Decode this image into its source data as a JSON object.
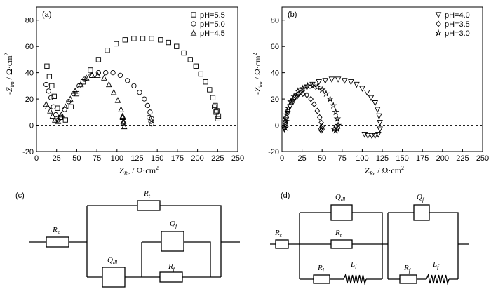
{
  "chart_data": [
    {
      "type": "scatter",
      "panel_label": "(a)",
      "xlabel": "Z_Re / Ω·cm²",
      "xlabel_main": "Z",
      "xlabel_sub": "Re",
      "xlabel_unit": " / Ω·cm",
      "xlabel_sup": "2",
      "ylabel": "-Z_im / Ω·cm²",
      "xlim": [
        0,
        250
      ],
      "ylim": [
        -20,
        90
      ],
      "xticks": [
        0,
        25,
        50,
        75,
        100,
        125,
        150,
        175,
        200,
        225,
        250
      ],
      "yticks": [
        -20,
        0,
        20,
        40,
        60,
        80
      ],
      "reference_line": 0,
      "legend_position": "top-right",
      "series": [
        {
          "name": "pH=5.5",
          "marker": "square",
          "x": [
            13,
            16,
            19,
            22,
            26,
            30,
            36,
            43,
            50,
            58,
            67,
            77,
            88,
            99,
            110,
            121,
            132,
            143,
            154,
            164,
            174,
            183,
            191,
            198,
            204,
            210,
            215,
            219,
            222,
            224,
            226,
            225,
            223,
            221
          ],
          "y": [
            45,
            37,
            30,
            22,
            13,
            6,
            4,
            14,
            24,
            33,
            42,
            50,
            57,
            62,
            65,
            66,
            66,
            66,
            65,
            63,
            60,
            55,
            50,
            45,
            39,
            33,
            27,
            21,
            15,
            11,
            7,
            5,
            10,
            14
          ]
        },
        {
          "name": "pH=5.0",
          "marker": "circle",
          "x": [
            12,
            15,
            18,
            21,
            24,
            27,
            30,
            35,
            40,
            46,
            53,
            60,
            68,
            77,
            86,
            95,
            104,
            113,
            121,
            128,
            134,
            138,
            141,
            143,
            143,
            142,
            140
          ],
          "y": [
            31,
            26,
            21,
            14,
            8,
            4,
            6,
            12,
            18,
            24,
            30,
            35,
            38,
            40,
            40,
            40,
            38,
            34,
            30,
            25,
            20,
            15,
            10,
            5,
            1,
            3,
            6
          ]
        },
        {
          "name": "pH=4.5",
          "marker": "triangle",
          "x": [
            12,
            14,
            17,
            20,
            23,
            27,
            31,
            36,
            42,
            48,
            55,
            62,
            69,
            76,
            84,
            90,
            96,
            101,
            105,
            107,
            108,
            109,
            108,
            107
          ],
          "y": [
            16,
            14,
            11,
            7,
            4,
            3,
            8,
            14,
            20,
            26,
            31,
            36,
            38,
            38,
            36,
            31,
            25,
            19,
            12,
            7,
            3,
            -1,
            2,
            6
          ]
        }
      ]
    },
    {
      "type": "scatter",
      "panel_label": "(b)",
      "xlabel": "Z_Re / Ω·cm²",
      "xlabel_main": "Z",
      "xlabel_sub": "Re",
      "xlabel_unit": " / Ω·cm",
      "xlabel_sup": "2",
      "ylabel": "-Z_im / Ω·cm²",
      "xlim": [
        0,
        250
      ],
      "ylim": [
        -20,
        90
      ],
      "xticks": [
        0,
        25,
        50,
        75,
        100,
        125,
        150,
        175,
        200,
        225,
        250
      ],
      "yticks": [
        -20,
        0,
        20,
        40,
        60,
        80
      ],
      "reference_line": 0,
      "legend_position": "top-right",
      "series": [
        {
          "name": "pH=4.0",
          "marker": "triangle-down",
          "x": [
            3,
            4,
            5,
            7,
            10,
            14,
            19,
            25,
            31,
            38,
            46,
            54,
            62,
            70,
            78,
            86,
            93,
            100,
            106,
            111,
            116,
            119,
            121,
            122,
            122,
            120,
            116,
            112,
            107,
            103
          ],
          "y": [
            -3,
            0,
            4,
            9,
            14,
            18,
            22,
            26,
            29,
            31,
            33,
            34,
            35,
            35,
            34,
            33,
            31,
            28,
            25,
            21,
            17,
            12,
            7,
            2,
            -3,
            -7,
            -8,
            -8,
            -8,
            -7
          ]
        },
        {
          "name": "pH=3.5",
          "marker": "diamond",
          "x": [
            3,
            4,
            5,
            7,
            10,
            13,
            17,
            21,
            26,
            31,
            36,
            40,
            44,
            47,
            49,
            50,
            50,
            49,
            48
          ],
          "y": [
            -2,
            2,
            6,
            11,
            15,
            19,
            22,
            24,
            24,
            23,
            20,
            16,
            11,
            6,
            2,
            -1,
            -3,
            -4,
            -3
          ]
        },
        {
          "name": "pH=3.0",
          "marker": "star",
          "x": [
            4,
            5,
            6,
            8,
            11,
            15,
            20,
            26,
            32,
            38,
            44,
            50,
            55,
            60,
            64,
            67,
            69,
            70,
            69,
            67,
            65
          ],
          "y": [
            -2,
            3,
            8,
            13,
            18,
            22,
            26,
            28,
            30,
            30,
            29,
            27,
            24,
            20,
            15,
            10,
            5,
            0,
            -3,
            -4,
            -3
          ]
        }
      ]
    }
  ],
  "circuits": {
    "c": {
      "panel_label": "(c)",
      "rs": "R",
      "rs_sub": "s",
      "r_top": "R",
      "r_top_sub": "t",
      "q_mid": "Q",
      "q_mid_sub": "f",
      "q_low": "Q",
      "q_low_sub": "dl",
      "r_low": "R",
      "r_low_sub": "f"
    },
    "d": {
      "panel_label": "(d)",
      "rs": "R",
      "rs_sub": "s",
      "q1": "Q",
      "q1_sub": "dl",
      "r1": "R",
      "r1_sub": "t",
      "r2": "R",
      "r2_sub": "l",
      "l1": "L",
      "l1_sub": "l",
      "q2": "Q",
      "q2_sub": "f",
      "r3": "R",
      "r3_sub": "f",
      "l2": "L",
      "l2_sub": "f"
    }
  }
}
